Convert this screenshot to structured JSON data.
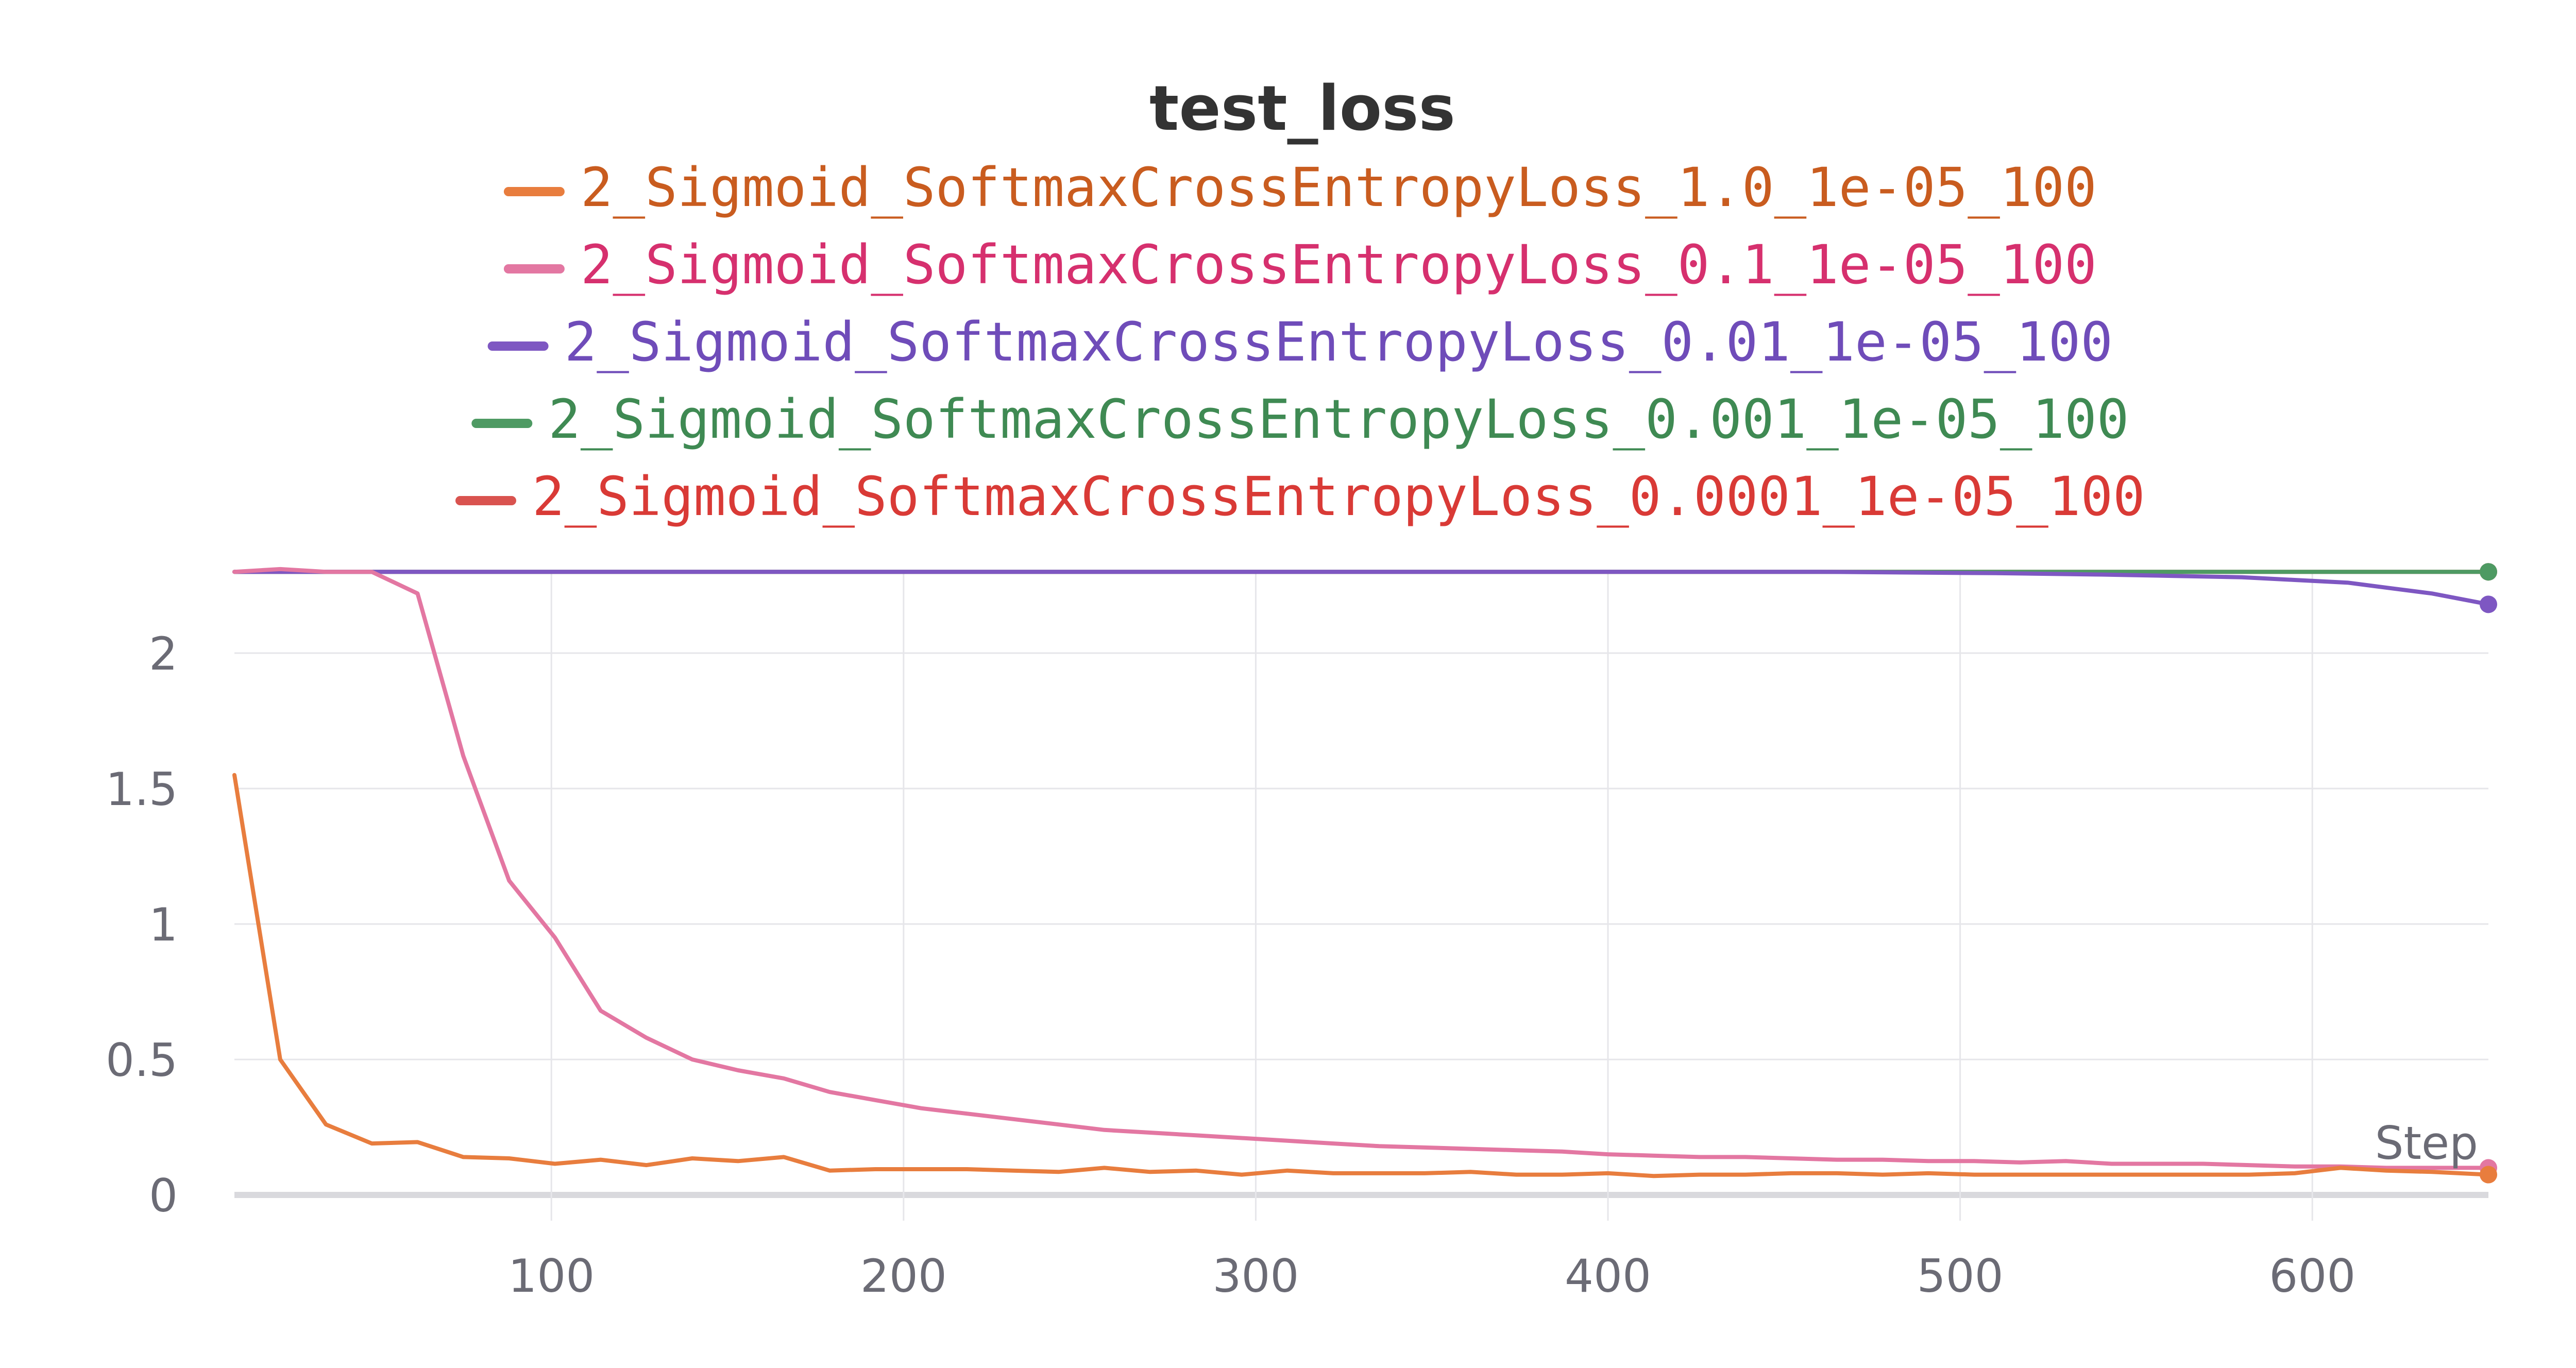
{
  "chart_data": {
    "type": "line",
    "title": "test_loss",
    "xlabel": "Step",
    "ylabel": "",
    "xlim": [
      10,
      650
    ],
    "ylim": [
      0,
      2.3
    ],
    "grid": true,
    "legend_position": "top-center",
    "x_ticks": [
      100,
      200,
      300,
      400,
      500,
      600
    ],
    "x_tick_labels": [
      "100",
      "200",
      "300",
      "400",
      "500",
      "600"
    ],
    "y_ticks": [
      0,
      0.5,
      1,
      1.5,
      2
    ],
    "y_tick_labels": [
      "0",
      "0.5",
      "1",
      "1.5",
      "2"
    ],
    "series": [
      {
        "name": "2_Sigmoid_SoftmaxCrossEntropyLoss_1.0_1e-05_100",
        "color": "#e87d3e",
        "label_color": "#c95c1f",
        "x": [
          10,
          23,
          36,
          49,
          62,
          75,
          88,
          101,
          114,
          127,
          140,
          153,
          166,
          179,
          192,
          205,
          218,
          231,
          244,
          257,
          270,
          283,
          296,
          309,
          322,
          335,
          348,
          361,
          374,
          387,
          400,
          413,
          426,
          439,
          452,
          465,
          478,
          491,
          504,
          517,
          530,
          543,
          556,
          569,
          582,
          595,
          608,
          621,
          634,
          650
        ],
        "y": [
          1.55,
          0.5,
          0.26,
          0.19,
          0.195,
          0.14,
          0.135,
          0.115,
          0.13,
          0.11,
          0.135,
          0.125,
          0.14,
          0.09,
          0.095,
          0.095,
          0.095,
          0.09,
          0.085,
          0.1,
          0.085,
          0.09,
          0.075,
          0.09,
          0.08,
          0.08,
          0.08,
          0.085,
          0.075,
          0.075,
          0.08,
          0.07,
          0.075,
          0.075,
          0.08,
          0.08,
          0.075,
          0.08,
          0.075,
          0.075,
          0.075,
          0.075,
          0.075,
          0.075,
          0.075,
          0.08,
          0.1,
          0.09,
          0.085,
          0.075
        ]
      },
      {
        "name": "2_Sigmoid_SoftmaxCrossEntropyLoss_0.1_1e-05_100",
        "color": "#e377a2",
        "label_color": "#d6306e",
        "x": [
          10,
          23,
          36,
          49,
          62,
          75,
          88,
          101,
          114,
          127,
          140,
          153,
          166,
          179,
          192,
          205,
          218,
          231,
          244,
          257,
          270,
          283,
          296,
          309,
          322,
          335,
          348,
          361,
          374,
          387,
          400,
          413,
          426,
          439,
          452,
          465,
          478,
          491,
          504,
          517,
          530,
          543,
          556,
          569,
          582,
          595,
          608,
          621,
          634,
          650
        ],
        "y": [
          2.3,
          2.31,
          2.3,
          2.3,
          2.22,
          1.62,
          1.16,
          0.95,
          0.68,
          0.58,
          0.5,
          0.46,
          0.43,
          0.38,
          0.35,
          0.32,
          0.3,
          0.28,
          0.26,
          0.24,
          0.23,
          0.22,
          0.21,
          0.2,
          0.19,
          0.18,
          0.175,
          0.17,
          0.165,
          0.16,
          0.15,
          0.145,
          0.14,
          0.14,
          0.135,
          0.13,
          0.13,
          0.125,
          0.125,
          0.12,
          0.125,
          0.115,
          0.115,
          0.115,
          0.11,
          0.105,
          0.105,
          0.1,
          0.1,
          0.1
        ]
      },
      {
        "name": "2_Sigmoid_SoftmaxCrossEntropyLoss_0.01_1e-05_100",
        "color": "#7e57c2",
        "label_color": "#6f4cb9",
        "x": [
          10,
          60,
          110,
          160,
          210,
          260,
          310,
          360,
          410,
          460,
          510,
          540,
          560,
          580,
          595,
          610,
          622,
          634,
          650
        ],
        "y": [
          2.3,
          2.3,
          2.3,
          2.3,
          2.3,
          2.3,
          2.3,
          2.3,
          2.3,
          2.3,
          2.295,
          2.29,
          2.285,
          2.28,
          2.27,
          2.26,
          2.24,
          2.22,
          2.18
        ]
      },
      {
        "name": "2_Sigmoid_SoftmaxCrossEntropyLoss_0.001_1e-05_100",
        "color": "#4e9a63",
        "label_color": "#3f8a53",
        "x": [
          10,
          100,
          200,
          300,
          400,
          500,
          600,
          650
        ],
        "y": [
          2.3,
          2.3,
          2.3,
          2.3,
          2.3,
          2.3,
          2.3,
          2.3
        ]
      },
      {
        "name": "2_Sigmoid_SoftmaxCrossEntropyLoss_0.0001_1e-05_100",
        "color": "#d9534f",
        "label_color": "#d93a36",
        "x": [
          10,
          100,
          200,
          300,
          400,
          500,
          600,
          650
        ],
        "y": [
          2.3,
          2.3,
          2.3,
          2.3,
          2.3,
          2.3,
          2.3,
          2.3
        ]
      }
    ]
  }
}
